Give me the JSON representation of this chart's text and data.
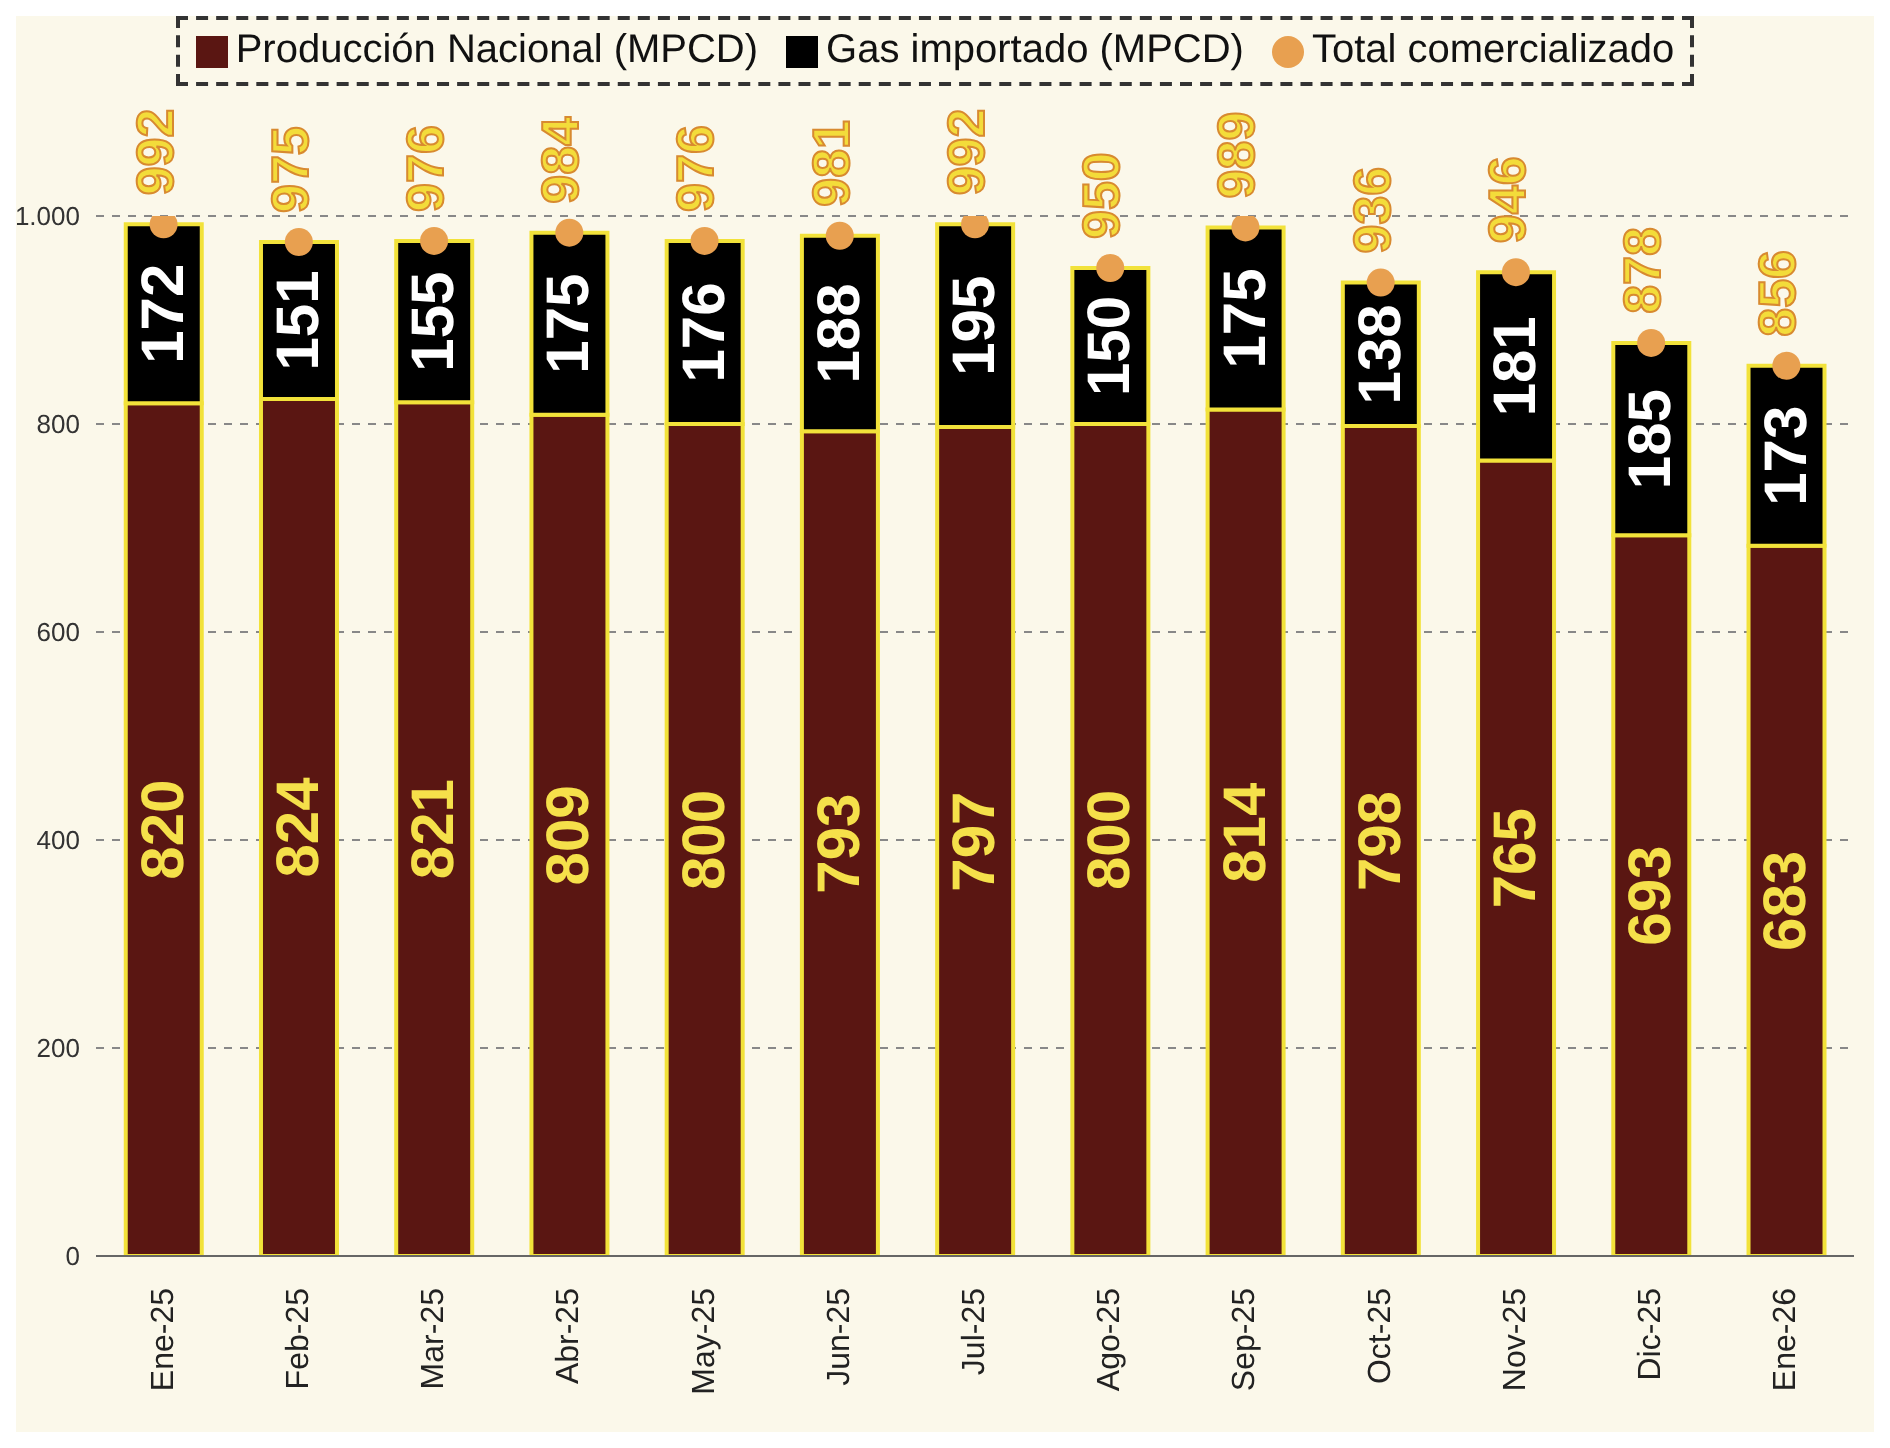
{
  "chart_data": {
    "type": "bar",
    "stacked": true,
    "categories": [
      "Ene-25",
      "Feb-25",
      "Mar-25",
      "Abr-25",
      "May-25",
      "Jun-25",
      "Jul-25",
      "Ago-25",
      "Sep-25",
      "Oct-25",
      "Nov-25",
      "Dic-25",
      "Ene-26"
    ],
    "series": [
      {
        "name": "Producción Nacional (MPCD)",
        "color": "#5a1612",
        "values": [
          820,
          824,
          821,
          809,
          800,
          793,
          797,
          800,
          814,
          798,
          765,
          693,
          683
        ]
      },
      {
        "name": "Gas importado (MPCD)",
        "color": "#000000",
        "values": [
          172,
          151,
          155,
          175,
          176,
          188,
          195,
          150,
          175,
          138,
          181,
          185,
          173
        ]
      },
      {
        "name": "Total comercializado",
        "type": "scatter",
        "color": "#e8a050",
        "values": [
          992,
          975,
          976,
          984,
          976,
          981,
          992,
          950,
          989,
          936,
          946,
          878,
          856
        ]
      }
    ],
    "ylim": [
      0,
      1000
    ],
    "yticks": [
      0,
      200,
      400,
      600,
      800,
      {
        "value": 1000,
        "label": "1.000"
      }
    ],
    "grid": "y",
    "legend": "top",
    "marker": "circle",
    "data_labels": true
  }
}
